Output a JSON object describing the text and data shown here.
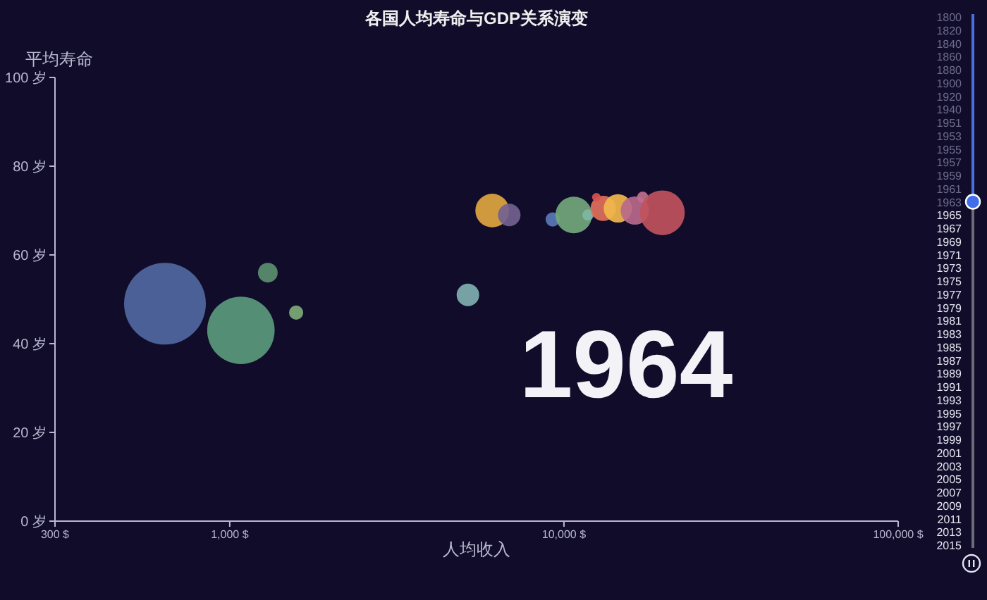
{
  "chart_data": {
    "type": "bubble",
    "title": "各国人均寿命与GDP关系演变",
    "subtitle": "1964",
    "xlabel": "人均收入",
    "ylabel": "平均寿命",
    "annotations": [
      "1800",
      "1820",
      "1840",
      "1860",
      "1880",
      "1900",
      "1920",
      "1940",
      "1951",
      "1953",
      "1955",
      "1957",
      "1959",
      "1961",
      "1963",
      "1965",
      "1967",
      "1969",
      "1971",
      "1973",
      "1975",
      "1977",
      "1979",
      "1981",
      "1983",
      "1985",
      "1987",
      "1989",
      "1991",
      "1993",
      "1995",
      "1997",
      "1999",
      "2001",
      "2003",
      "2005",
      "2007",
      "2009",
      "2011",
      "2013",
      "2015"
    ],
    "x": [
      640,
      1080,
      1300,
      1580,
      5160,
      6100,
      6860,
      9250,
      10700,
      11800,
      13100,
      12500,
      14500,
      16300,
      17200,
      19700
    ],
    "values": [
      49,
      43,
      56,
      47,
      51,
      70,
      69,
      68,
      69,
      69,
      70.5,
      73,
      70.5,
      70,
      73,
      69.5
    ],
    "sizes": [
      1,
      0.68,
      0.058,
      0.03,
      0.076,
      0.17,
      0.076,
      0.03,
      0.2,
      0.019,
      0.096,
      0.011,
      0.12,
      0.12,
      0.019,
      0.3
    ],
    "colors": [
      "#5068a0",
      "#5a9a7c",
      "#5b8f6e",
      "#7daa78",
      "#7fb0b0",
      "#dfa640",
      "#73628f",
      "#5a7ab5",
      "#72a87c",
      "#7fb7a4",
      "#e0715a",
      "#d9534f",
      "#f2b84b",
      "#b7698c",
      "#c0708e",
      "#c1535d"
    ],
    "log": "x",
    "xlim": [
      300,
      100000
    ],
    "xticks": [
      {
        "value": 300,
        "label": "300 $"
      },
      {
        "value": 1000,
        "label": "1,000 $"
      },
      {
        "value": 10000,
        "label": "10,000 $"
      },
      {
        "value": 100000,
        "label": "100,000 $"
      }
    ],
    "ylim": [
      0,
      100
    ],
    "yticks": [
      {
        "value": 0,
        "label": "0 岁"
      },
      {
        "value": 20,
        "label": "20 岁"
      },
      {
        "value": 40,
        "label": "40 岁"
      },
      {
        "value": 60,
        "label": "60 岁"
      },
      {
        "value": 80,
        "label": "80 岁"
      },
      {
        "value": 100,
        "label": "100 岁"
      }
    ]
  }
}
